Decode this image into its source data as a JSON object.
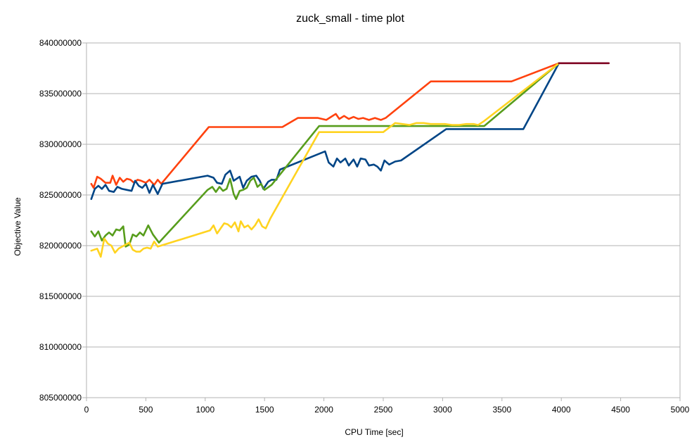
{
  "chart_data": {
    "type": "line",
    "title": "zuck_small - time plot",
    "xlabel": "CPU Time [sec]",
    "ylabel": "Objective Value",
    "xlim": [
      0,
      5000
    ],
    "ylim": [
      805000000,
      840000000
    ],
    "x_ticks": [
      0,
      500,
      1000,
      1500,
      2000,
      2500,
      3000,
      3500,
      4000,
      4500,
      5000
    ],
    "y_ticks": [
      805000000,
      810000000,
      815000000,
      820000000,
      825000000,
      830000000,
      835000000,
      840000000
    ],
    "x_tick_labels": [
      "0",
      "500",
      "1000",
      "1500",
      "2000",
      "2500",
      "3000",
      "3500",
      "4000",
      "4500",
      "5000"
    ],
    "y_tick_labels": [
      "805000000",
      "810000000",
      "815000000",
      "820000000",
      "825000000",
      "830000000",
      "835000000",
      "840000000"
    ],
    "grid": "horizontal",
    "legend": "none",
    "series": [
      {
        "color": "#ff420e",
        "points": [
          [
            40,
            826100000
          ],
          [
            60,
            825700000
          ],
          [
            90,
            826800000
          ],
          [
            120,
            826600000
          ],
          [
            160,
            826200000
          ],
          [
            200,
            826200000
          ],
          [
            220,
            826900000
          ],
          [
            250,
            826000000
          ],
          [
            280,
            826700000
          ],
          [
            310,
            826300000
          ],
          [
            340,
            826600000
          ],
          [
            370,
            826500000
          ],
          [
            400,
            826200000
          ],
          [
            430,
            826500000
          ],
          [
            460,
            826400000
          ],
          [
            500,
            826200000
          ],
          [
            530,
            826500000
          ],
          [
            570,
            826000000
          ],
          [
            600,
            826500000
          ],
          [
            630,
            826100000
          ],
          [
            1030,
            831700000
          ],
          [
            1650,
            831700000
          ],
          [
            1780,
            832600000
          ],
          [
            1850,
            832600000
          ],
          [
            1950,
            832600000
          ],
          [
            2020,
            832400000
          ],
          [
            2060,
            832700000
          ],
          [
            2100,
            833000000
          ],
          [
            2130,
            832500000
          ],
          [
            2170,
            832800000
          ],
          [
            2210,
            832500000
          ],
          [
            2250,
            832700000
          ],
          [
            2290,
            832500000
          ],
          [
            2330,
            832600000
          ],
          [
            2380,
            832400000
          ],
          [
            2430,
            832600000
          ],
          [
            2480,
            832400000
          ],
          [
            2520,
            832600000
          ],
          [
            2900,
            836200000
          ],
          [
            3580,
            836200000
          ],
          [
            3980,
            838000000
          ]
        ]
      },
      {
        "color": "#004586",
        "points": [
          [
            40,
            824600000
          ],
          [
            70,
            825600000
          ],
          [
            100,
            825900000
          ],
          [
            130,
            825600000
          ],
          [
            160,
            826000000
          ],
          [
            190,
            825400000
          ],
          [
            230,
            825300000
          ],
          [
            260,
            825800000
          ],
          [
            300,
            825600000
          ],
          [
            340,
            825500000
          ],
          [
            380,
            825400000
          ],
          [
            410,
            826400000
          ],
          [
            440,
            825900000
          ],
          [
            470,
            825700000
          ],
          [
            500,
            826100000
          ],
          [
            530,
            825200000
          ],
          [
            560,
            826000000
          ],
          [
            600,
            825100000
          ],
          [
            640,
            826100000
          ],
          [
            1020,
            826900000
          ],
          [
            1070,
            826700000
          ],
          [
            1100,
            826200000
          ],
          [
            1140,
            826100000
          ],
          [
            1170,
            827000000
          ],
          [
            1210,
            827400000
          ],
          [
            1240,
            826400000
          ],
          [
            1290,
            826800000
          ],
          [
            1320,
            825700000
          ],
          [
            1350,
            826400000
          ],
          [
            1390,
            826800000
          ],
          [
            1430,
            826900000
          ],
          [
            1460,
            826400000
          ],
          [
            1490,
            825600000
          ],
          [
            1530,
            826300000
          ],
          [
            1560,
            826500000
          ],
          [
            1600,
            826500000
          ],
          [
            1630,
            827500000
          ],
          [
            2010,
            829300000
          ],
          [
            2040,
            828200000
          ],
          [
            2080,
            827800000
          ],
          [
            2110,
            828600000
          ],
          [
            2140,
            828200000
          ],
          [
            2180,
            828600000
          ],
          [
            2210,
            827900000
          ],
          [
            2250,
            828500000
          ],
          [
            2280,
            827800000
          ],
          [
            2310,
            828600000
          ],
          [
            2350,
            828500000
          ],
          [
            2380,
            827900000
          ],
          [
            2420,
            828000000
          ],
          [
            2450,
            827800000
          ],
          [
            2480,
            827400000
          ],
          [
            2510,
            828400000
          ],
          [
            2550,
            828000000
          ],
          [
            2600,
            828300000
          ],
          [
            2650,
            828400000
          ],
          [
            3030,
            831500000
          ],
          [
            3680,
            831500000
          ],
          [
            3980,
            838000000
          ]
        ]
      },
      {
        "color": "#579d1c",
        "points": [
          [
            40,
            821400000
          ],
          [
            70,
            820900000
          ],
          [
            100,
            821400000
          ],
          [
            130,
            820500000
          ],
          [
            160,
            821000000
          ],
          [
            190,
            821300000
          ],
          [
            220,
            821000000
          ],
          [
            250,
            821600000
          ],
          [
            280,
            821500000
          ],
          [
            310,
            821900000
          ],
          [
            330,
            819900000
          ],
          [
            360,
            820100000
          ],
          [
            390,
            821100000
          ],
          [
            420,
            820900000
          ],
          [
            450,
            821300000
          ],
          [
            480,
            821000000
          ],
          [
            520,
            822000000
          ],
          [
            560,
            821100000
          ],
          [
            610,
            820300000
          ],
          [
            1020,
            825500000
          ],
          [
            1060,
            825800000
          ],
          [
            1090,
            825300000
          ],
          [
            1120,
            825800000
          ],
          [
            1150,
            825400000
          ],
          [
            1180,
            825600000
          ],
          [
            1210,
            826600000
          ],
          [
            1240,
            825100000
          ],
          [
            1260,
            824600000
          ],
          [
            1290,
            825400000
          ],
          [
            1320,
            825500000
          ],
          [
            1350,
            825700000
          ],
          [
            1380,
            826400000
          ],
          [
            1410,
            826700000
          ],
          [
            1440,
            825800000
          ],
          [
            1470,
            826100000
          ],
          [
            1500,
            825500000
          ],
          [
            1560,
            826000000
          ],
          [
            1960,
            831800000
          ],
          [
            3350,
            831800000
          ],
          [
            3980,
            838000000
          ]
        ]
      },
      {
        "color": "#ffd320",
        "points": [
          [
            40,
            819500000
          ],
          [
            90,
            819700000
          ],
          [
            120,
            818900000
          ],
          [
            150,
            820700000
          ],
          [
            180,
            820200000
          ],
          [
            210,
            820000000
          ],
          [
            240,
            819300000
          ],
          [
            270,
            819700000
          ],
          [
            300,
            819900000
          ],
          [
            330,
            820100000
          ],
          [
            360,
            820300000
          ],
          [
            390,
            819600000
          ],
          [
            420,
            819400000
          ],
          [
            450,
            819400000
          ],
          [
            480,
            819700000
          ],
          [
            510,
            819800000
          ],
          [
            540,
            819700000
          ],
          [
            570,
            820400000
          ],
          [
            600,
            819900000
          ],
          [
            1040,
            821500000
          ],
          [
            1070,
            822000000
          ],
          [
            1100,
            821200000
          ],
          [
            1130,
            821700000
          ],
          [
            1160,
            822200000
          ],
          [
            1190,
            822100000
          ],
          [
            1220,
            821800000
          ],
          [
            1250,
            822300000
          ],
          [
            1280,
            821400000
          ],
          [
            1300,
            822400000
          ],
          [
            1330,
            821800000
          ],
          [
            1360,
            822000000
          ],
          [
            1390,
            821600000
          ],
          [
            1420,
            822000000
          ],
          [
            1450,
            822600000
          ],
          [
            1480,
            821900000
          ],
          [
            1510,
            821700000
          ],
          [
            1550,
            822700000
          ],
          [
            1960,
            831200000
          ],
          [
            2500,
            831200000
          ],
          [
            2600,
            832100000
          ],
          [
            2660,
            832000000
          ],
          [
            2720,
            831900000
          ],
          [
            2780,
            832100000
          ],
          [
            2840,
            832100000
          ],
          [
            2900,
            832000000
          ],
          [
            2960,
            832000000
          ],
          [
            3020,
            832000000
          ],
          [
            3080,
            831900000
          ],
          [
            3140,
            831900000
          ],
          [
            3200,
            832000000
          ],
          [
            3260,
            832000000
          ],
          [
            3300,
            831900000
          ],
          [
            3350,
            832300000
          ],
          [
            3980,
            838000000
          ]
        ]
      },
      {
        "color": "#7e0021",
        "points": [
          [
            3980,
            838000000
          ],
          [
            4400,
            838000000
          ]
        ]
      }
    ]
  }
}
